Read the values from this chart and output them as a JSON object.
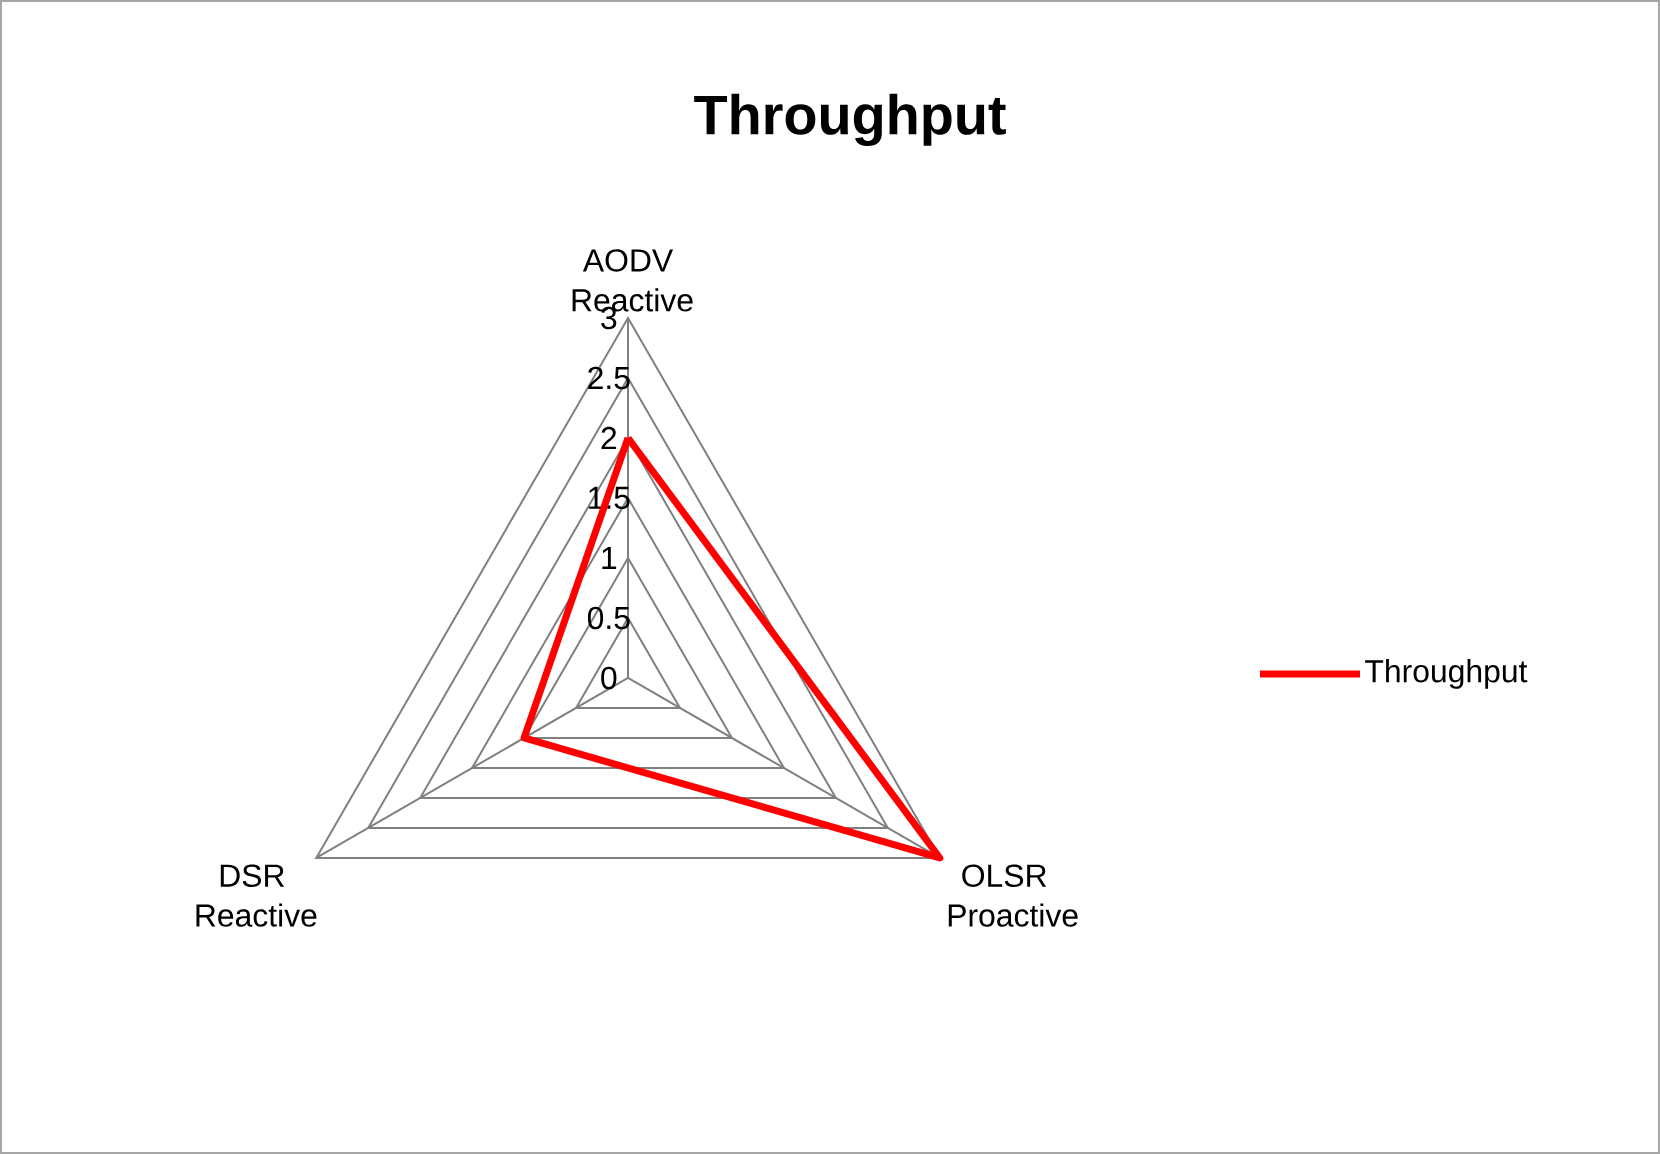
{
  "chart_data": {
    "type": "radar",
    "title": "Throughput",
    "categories": [
      "AODV Reactive",
      "OLSR Proactive",
      "DSR Reactive"
    ],
    "series": [
      {
        "name": "Throughput",
        "color": "#ff0000",
        "values": [
          2,
          3,
          1
        ]
      }
    ],
    "ylim": [
      0,
      3
    ],
    "yticks": [
      0,
      0.5,
      1,
      1.5,
      2,
      2.5,
      3
    ],
    "grid": true,
    "legend": "right"
  }
}
